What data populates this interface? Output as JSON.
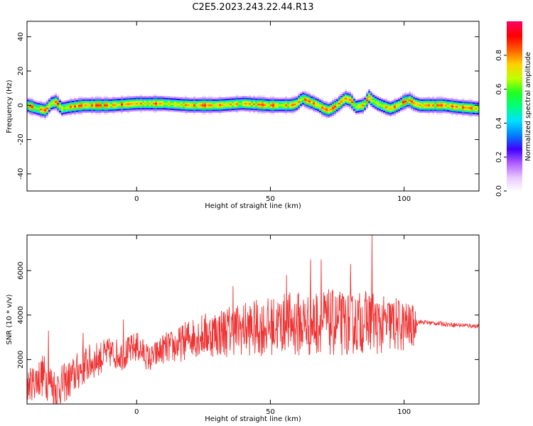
{
  "figure": {
    "title": "C2E5.2023.243.22.44.R13",
    "colorbar": {
      "label": "Normalized spectral amplitude",
      "ticks": [
        "0.0",
        "0.2",
        "0.4",
        "0.6",
        "0.8"
      ],
      "tick_values": [
        0.0,
        0.2,
        0.4,
        0.6,
        0.8
      ],
      "range": [
        0,
        1
      ],
      "colormap": [
        "#ffffff",
        "#e8c8ff",
        "#b060ff",
        "#4000ff",
        "#0080ff",
        "#00e0ff",
        "#00ff80",
        "#20ff20",
        "#c0ff00",
        "#ffd000",
        "#ff6000",
        "#ff0000",
        "#ff0060"
      ]
    }
  },
  "chart_data": [
    {
      "type": "heatmap",
      "xlabel": "Height of straight line (km)",
      "ylabel": "Frequency (Hz)",
      "xlim": [
        -41,
        128
      ],
      "ylim": [
        -50,
        49
      ],
      "xticks": [
        0,
        50,
        100
      ],
      "xtick_labels": [
        "0",
        "50",
        "100"
      ],
      "yticks": [
        -40,
        -20,
        0,
        20,
        40
      ],
      "ytick_labels": [
        "-40",
        "-20",
        "0",
        "20",
        "40"
      ],
      "ridge": {
        "x": [
          -41,
          -37,
          -34,
          -32,
          -30,
          -28,
          -25,
          -20,
          -10,
          0,
          10,
          20,
          30,
          40,
          50,
          55,
          58,
          60,
          62,
          65,
          68,
          70,
          72,
          75,
          78,
          80,
          82,
          85,
          87,
          88,
          90,
          93,
          95,
          98,
          100,
          102,
          104,
          106,
          110,
          115,
          120,
          128
        ],
        "y": [
          0,
          -2,
          -3,
          1,
          2,
          -2,
          -1,
          0,
          0,
          1,
          1,
          0,
          0,
          1,
          0,
          0,
          0,
          1,
          4,
          2,
          0,
          -2,
          -3,
          0,
          4,
          3,
          -1,
          0,
          5,
          3,
          1,
          -1,
          -2,
          0,
          2,
          3,
          1,
          0,
          0,
          0,
          -1,
          -2
        ],
        "band_halfwidth_hz": 3,
        "peak_amplitude": 0.9
      }
    },
    {
      "type": "line",
      "xlabel": "Height of straight line (km)",
      "ylabel": "SNR (10 * v/v)",
      "xlim": [
        -41,
        128
      ],
      "ylim": [
        0,
        7600
      ],
      "xticks": [
        0,
        50,
        100
      ],
      "xtick_labels": [
        "0",
        "50",
        "100"
      ],
      "yticks": [
        2000,
        4000,
        6000
      ],
      "ytick_labels": [
        "2000",
        "4000",
        "6000"
      ],
      "color": "#ee3333",
      "envelope": {
        "x": [
          -41,
          -35,
          -30,
          -25,
          -20,
          -15,
          -10,
          -5,
          0,
          5,
          10,
          15,
          20,
          25,
          30,
          35,
          40,
          45,
          50,
          55,
          60,
          65,
          70,
          75,
          80,
          85,
          88,
          90,
          95,
          100,
          104,
          105,
          110,
          120,
          128
        ],
        "mean": [
          800,
          1300,
          700,
          1100,
          1700,
          2000,
          2300,
          2200,
          2600,
          2000,
          2500,
          2600,
          3000,
          3100,
          3200,
          3300,
          3400,
          3400,
          3500,
          3600,
          3600,
          3600,
          3700,
          3600,
          3600,
          3700,
          3800,
          3500,
          3600,
          3500,
          3500,
          3700,
          3650,
          3550,
          3500
        ],
        "spread": [
          700,
          1000,
          900,
          900,
          900,
          800,
          700,
          700,
          700,
          600,
          700,
          800,
          900,
          1000,
          1100,
          1200,
          1200,
          1300,
          1300,
          1400,
          1500,
          1500,
          1500,
          1500,
          1400,
          1400,
          1400,
          1300,
          1300,
          1200,
          900,
          120,
          100,
          100,
          100
        ]
      },
      "peaks": [
        {
          "x": 88,
          "y": 7600
        },
        {
          "x": 65,
          "y": 6500
        },
        {
          "x": 69,
          "y": 6500
        },
        {
          "x": 80,
          "y": 6300
        },
        {
          "x": 56,
          "y": 5800
        },
        {
          "x": 36,
          "y": 5300
        },
        {
          "x": -33,
          "y": 3300
        },
        {
          "x": -5,
          "y": 3800
        },
        {
          "x": -20,
          "y": 3200
        }
      ]
    }
  ]
}
